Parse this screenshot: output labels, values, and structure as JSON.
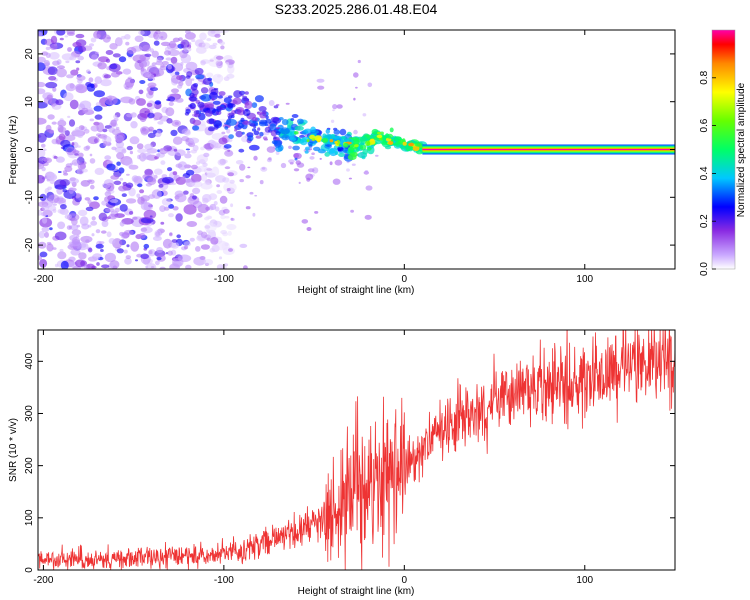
{
  "title": "S233.2025.286.01.48.E04",
  "chart_data": [
    {
      "type": "heatmap",
      "xlabel": "Height of straight line (km)",
      "ylabel": "Frequency (Hz)",
      "xlim": [
        -203,
        150
      ],
      "ylim": [
        -25,
        25
      ],
      "xticks": [
        -200,
        -100,
        0,
        100
      ],
      "yticks": [
        -20,
        -10,
        0,
        10,
        20
      ],
      "colorbar": {
        "label": "Normalized spectral amplitude",
        "range": [
          0,
          1
        ],
        "ticks": [
          0.0,
          0.2,
          0.4,
          0.6,
          0.8
        ]
      },
      "features": {
        "noise_region_x": [
          -203,
          -100
        ],
        "chirp_track": [
          [
            -120,
            10
          ],
          [
            -100,
            8
          ],
          [
            -80,
            5
          ],
          [
            -60,
            3
          ],
          [
            -40,
            1
          ],
          [
            -20,
            1
          ],
          [
            -15,
            3
          ],
          [
            0,
            1
          ],
          [
            10,
            0.5
          ]
        ],
        "stable_line": {
          "x": [
            10,
            150
          ],
          "freq": 0.0,
          "amplitude": 1.0
        }
      }
    },
    {
      "type": "line",
      "xlabel": "Height of straight line (km)",
      "ylabel": "SNR (10 * v/v)",
      "xlim": [
        -203,
        150
      ],
      "ylim": [
        0,
        460
      ],
      "xticks": [
        -200,
        -100,
        0,
        100
      ],
      "yticks": [
        0,
        100,
        200,
        300,
        400
      ],
      "series": [
        {
          "name": "SNR",
          "color": "#ee3333",
          "trend_x": [
            -203,
            -150,
            -110,
            -90,
            -70,
            -50,
            -35,
            -28,
            -22,
            -15,
            -10,
            -5,
            0,
            10,
            20,
            30,
            50,
            70,
            90,
            110,
            130,
            150
          ],
          "trend_y": [
            20,
            22,
            28,
            40,
            60,
            85,
            110,
            150,
            170,
            180,
            175,
            180,
            190,
            230,
            270,
            295,
            320,
            345,
            360,
            380,
            395,
            405
          ]
        }
      ]
    }
  ]
}
